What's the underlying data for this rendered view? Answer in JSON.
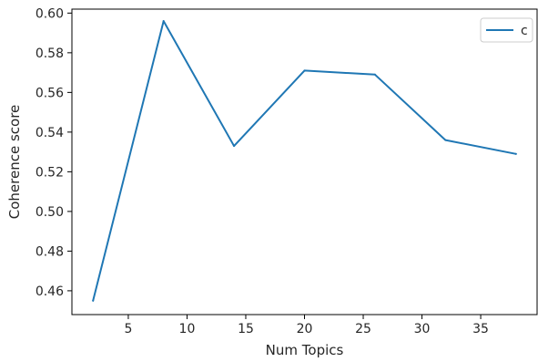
{
  "chart_data": {
    "type": "line",
    "title": "",
    "xlabel": "Num Topics",
    "ylabel": "Coherence score",
    "xlim": [
      0.2,
      39.8
    ],
    "ylim": [
      0.448,
      0.602
    ],
    "xticks": [
      5,
      10,
      15,
      20,
      25,
      30,
      35
    ],
    "xtick_labels": [
      "5",
      "10",
      "15",
      "20",
      "25",
      "30",
      "35"
    ],
    "yticks": [
      0.46,
      0.48,
      0.5,
      0.52,
      0.54,
      0.56,
      0.58,
      0.6
    ],
    "ytick_labels": [
      "0.46",
      "0.48",
      "0.50",
      "0.52",
      "0.54",
      "0.56",
      "0.58",
      "0.60"
    ],
    "grid": false,
    "legend_position": "top-right",
    "series": [
      {
        "name": "c",
        "color": "#1f77b4",
        "x": [
          2,
          8,
          14,
          20,
          26,
          32,
          38
        ],
        "y": [
          0.455,
          0.596,
          0.533,
          0.571,
          0.569,
          0.536,
          0.529
        ]
      }
    ]
  }
}
